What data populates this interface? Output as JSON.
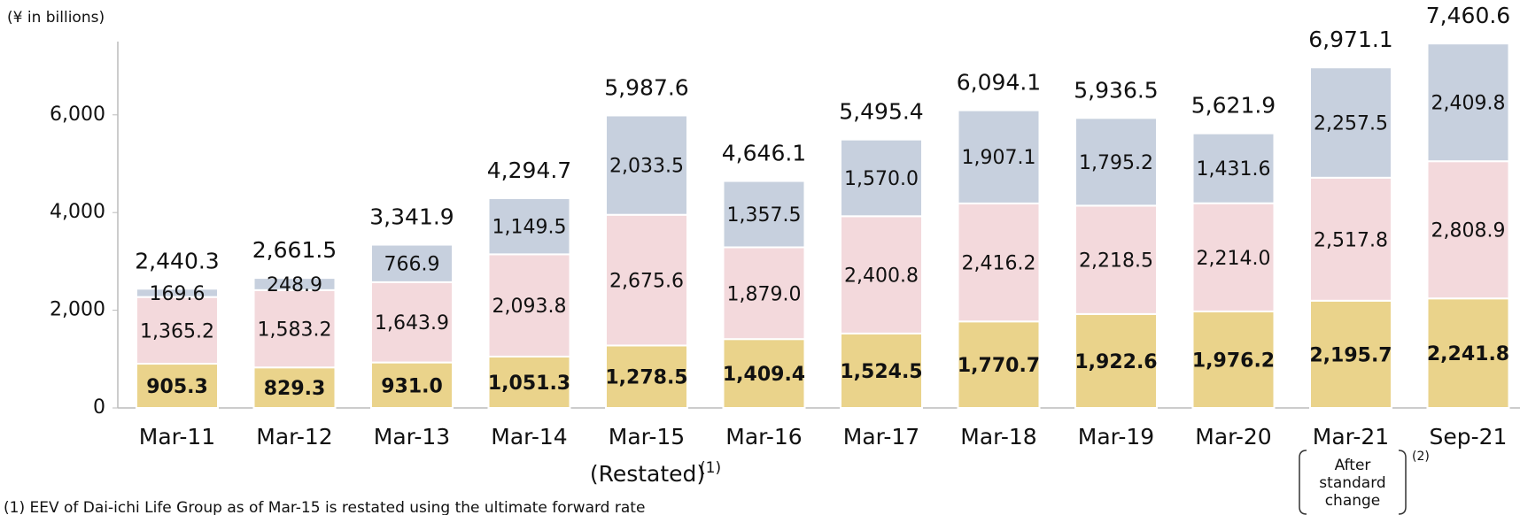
{
  "chart_data": {
    "type": "stacked_bar",
    "y_axis_label": "(¥ in billions)",
    "categories": [
      "Mar-11",
      "Mar-12",
      "Mar-13",
      "Mar-14",
      "Mar-15",
      "Mar-16",
      "Mar-17",
      "Mar-18",
      "Mar-19",
      "Mar-20",
      "Mar-21",
      "Sep-21"
    ],
    "series": [
      {
        "color": "#ead38b",
        "bold": true,
        "values": [
          905.3,
          829.3,
          931.0,
          1051.3,
          1278.5,
          1409.4,
          1524.5,
          1770.7,
          1922.6,
          1976.2,
          2195.7,
          2241.8
        ],
        "value_labels": [
          "905.3",
          "829.3",
          "931.0",
          "1,051.3",
          "1,278.5",
          "1,409.4",
          "1,524.5",
          "1,770.7",
          "1,922.6",
          "1,976.2",
          "2,195.7",
          "2,241.8"
        ]
      },
      {
        "color": "#f3d9dc",
        "bold": false,
        "values": [
          1365.2,
          1583.2,
          1643.9,
          2093.8,
          2675.6,
          1879.0,
          2400.8,
          2416.2,
          2218.5,
          2214.0,
          2517.8,
          2808.9
        ],
        "value_labels": [
          "1,365.2",
          "1,583.2",
          "1,643.9",
          "2,093.8",
          "2,675.6",
          "1,879.0",
          "2,400.8",
          "2,416.2",
          "2,218.5",
          "2,214.0",
          "2,517.8",
          "2,808.9"
        ]
      },
      {
        "color": "#c7d0de",
        "bold": false,
        "values": [
          169.6,
          248.9,
          766.9,
          1149.5,
          2033.5,
          1357.5,
          1570.0,
          1907.1,
          1795.2,
          1431.6,
          2257.5,
          2409.8
        ],
        "value_labels": [
          "169.6",
          "248.9",
          "766.9",
          "1,149.5",
          "2,033.5",
          "1,357.5",
          "1,570.0",
          "1,907.1",
          "1,795.2",
          "1,431.6",
          "2,257.5",
          "2,409.8"
        ]
      }
    ],
    "totals": [
      2440.3,
      2661.5,
      3341.9,
      4294.7,
      5987.6,
      4646.1,
      5495.4,
      6094.1,
      5936.5,
      5621.9,
      6971.1,
      7460.6
    ],
    "total_labels": [
      "2,440.3",
      "2,661.5",
      "3,341.9",
      "4,294.7",
      "5,987.6",
      "4,646.1",
      "5,495.4",
      "6,094.1",
      "5,936.5",
      "5,621.9",
      "6,971.1",
      "7,460.6"
    ],
    "ylim": [
      0,
      7500
    ],
    "yticks": [
      0,
      {
        "value": 2000,
        "label": "2,000"
      },
      {
        "value": 4000,
        "label": "4,000"
      },
      {
        "value": 6000,
        "label": "6,000"
      }
    ],
    "annotations": {
      "restated": "(Restated)",
      "restated_note": "(1)",
      "after": [
        "After",
        "standard",
        "change"
      ],
      "after_note": "(2)"
    },
    "footnote": "(1)  EEV of Dai-ichi Life Group as of Mar-15 is restated using the ultimate forward rate"
  }
}
